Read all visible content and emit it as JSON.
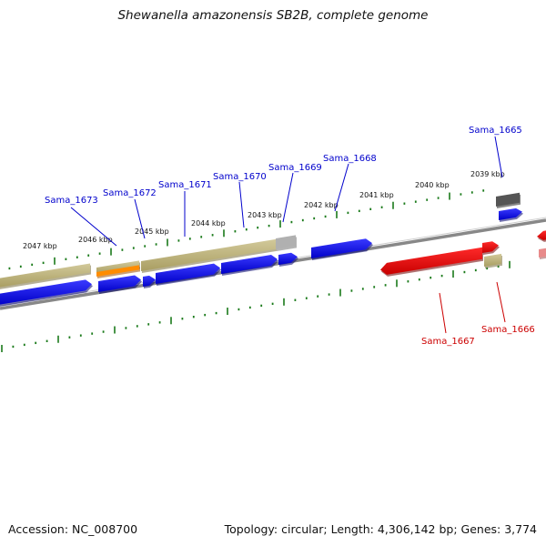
{
  "title": "Shewanella amazonensis SB2B, complete genome",
  "footer": {
    "accession": "Accession: NC_008700",
    "stats": "Topology: circular; Length: 4,306,142 bp; Genes: 3,774"
  },
  "colors": {
    "forward_cds": "#0000ee",
    "reverse_cds": "#ee0000",
    "gene": "#bfb47a",
    "rna": "#ff8c00",
    "pseudo_gray": "#b0b0b0",
    "dark_gray": "#555555",
    "backbone": "#888888",
    "ticks": "#1a7a1a",
    "forward_label": "#0000cc",
    "reverse_label": "#cc0000"
  },
  "scale_labels": [
    "2047 kbp",
    "2046 kbp",
    "2045 kbp",
    "2044 kbp",
    "2043 kbp",
    "2042 kbp",
    "2041 kbp",
    "2040 kbp",
    "2039 kbp"
  ],
  "gene_labels": {
    "forward": [
      "Sama_1673",
      "Sama_1672",
      "Sama_1671",
      "Sama_1670",
      "Sama_1669",
      "Sama_1668",
      "Sama_1665"
    ],
    "reverse": [
      "Sama_1667",
      "Sama_1666"
    ]
  }
}
